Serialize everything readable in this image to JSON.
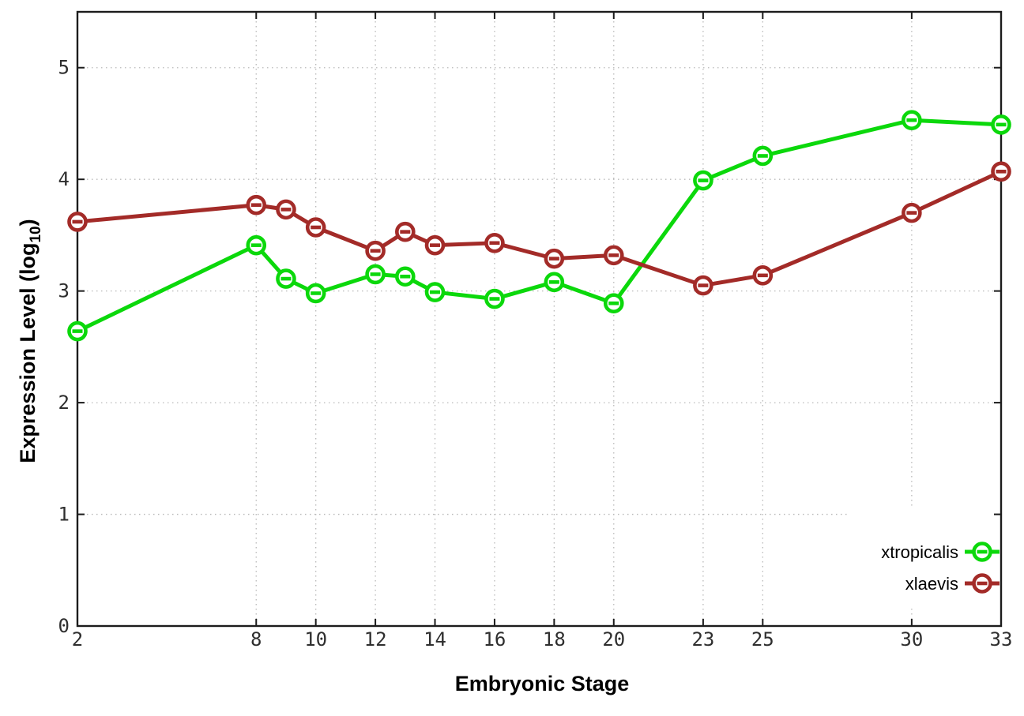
{
  "figure": {
    "background": "#ffffff",
    "border_color": "#1c1c1c",
    "grid_color": "#b9b9b9",
    "tick_label_color": "#2e2e2e",
    "title_color": "#000000"
  },
  "chart_data": {
    "type": "line",
    "title": "",
    "xlabel": "Embryonic Stage",
    "ylabel": "Expression Level (log10)",
    "ylabel_parts": {
      "main": "Expression Level (log",
      "sub": "10",
      "close": ")"
    },
    "x": [
      2,
      8,
      9,
      10,
      12,
      13,
      14,
      16,
      18,
      20,
      23,
      25,
      30,
      33
    ],
    "x_tick_labels": [
      "2",
      "8",
      "10",
      "12",
      "14",
      "16",
      "18",
      "20",
      "23",
      "25",
      "30",
      "33"
    ],
    "x_tick_values": [
      2,
      8,
      10,
      12,
      14,
      16,
      18,
      20,
      23,
      25,
      30,
      33
    ],
    "y_tick_labels": [
      "0",
      "1",
      "2",
      "3",
      "4",
      "5"
    ],
    "y_tick_values": [
      0,
      1,
      2,
      3,
      4,
      5
    ],
    "xlim": [
      2,
      33
    ],
    "ylim": [
      0,
      5.5
    ],
    "grid": true,
    "grid_style": "dotted",
    "legend_position": "inside-bottom-right",
    "legend_opaque": true,
    "marker": "open-circle",
    "series": [
      {
        "name": "xtropicalis",
        "color": "#0bd80b",
        "values": [
          2.64,
          3.41,
          3.11,
          2.98,
          3.15,
          3.13,
          2.99,
          2.93,
          3.08,
          2.89,
          3.99,
          4.21,
          4.53,
          4.49
        ]
      },
      {
        "name": "xlaevis",
        "color": "#a32b28",
        "values": [
          3.62,
          3.77,
          3.73,
          3.57,
          3.36,
          3.53,
          3.41,
          3.43,
          3.29,
          3.32,
          3.05,
          3.14,
          3.7,
          4.07
        ]
      }
    ]
  }
}
